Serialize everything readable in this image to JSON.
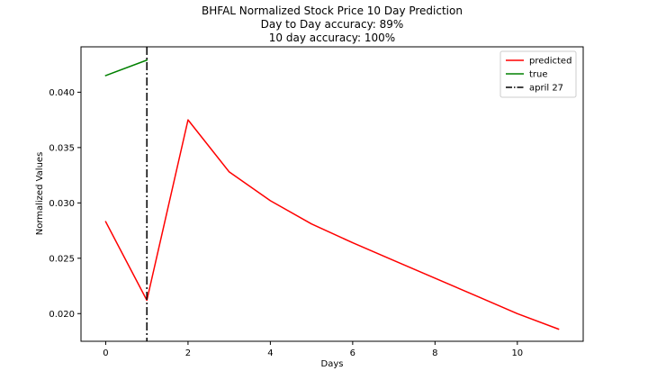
{
  "chart_data": {
    "type": "line",
    "title_lines": [
      "BHFAL Normalized Stock Price 10 Day Prediction",
      "Day to Day accuracy: 89%",
      "10 day accuracy: 100%"
    ],
    "xlabel": "Days",
    "ylabel": "Normalized Values",
    "xlim": [
      -0.6,
      11.6
    ],
    "ylim": [
      0.0175,
      0.0441
    ],
    "xticks": [
      0,
      2,
      4,
      6,
      8,
      10
    ],
    "yticks": [
      0.02,
      0.025,
      0.03,
      0.035,
      0.04
    ],
    "ytick_labels": [
      "0.020",
      "0.025",
      "0.030",
      "0.035",
      "0.040"
    ],
    "series": [
      {
        "name": "predicted",
        "color": "#ff0000",
        "x": [
          0,
          1,
          2,
          3,
          4,
          5,
          6,
          7,
          8,
          9,
          10,
          11
        ],
        "y": [
          0.0283,
          0.0212,
          0.0375,
          0.0328,
          0.0302,
          0.0281,
          0.0264,
          0.0248,
          0.0232,
          0.0216,
          0.02,
          0.0186
        ]
      },
      {
        "name": "true",
        "color": "#008000",
        "x": [
          0,
          1
        ],
        "y": [
          0.0415,
          0.0429
        ]
      }
    ],
    "vlines": [
      {
        "name": "april 27",
        "x": 1,
        "color": "#000000",
        "style": "dashdot"
      }
    ],
    "legend_position": "upper-right",
    "grid": false
  }
}
